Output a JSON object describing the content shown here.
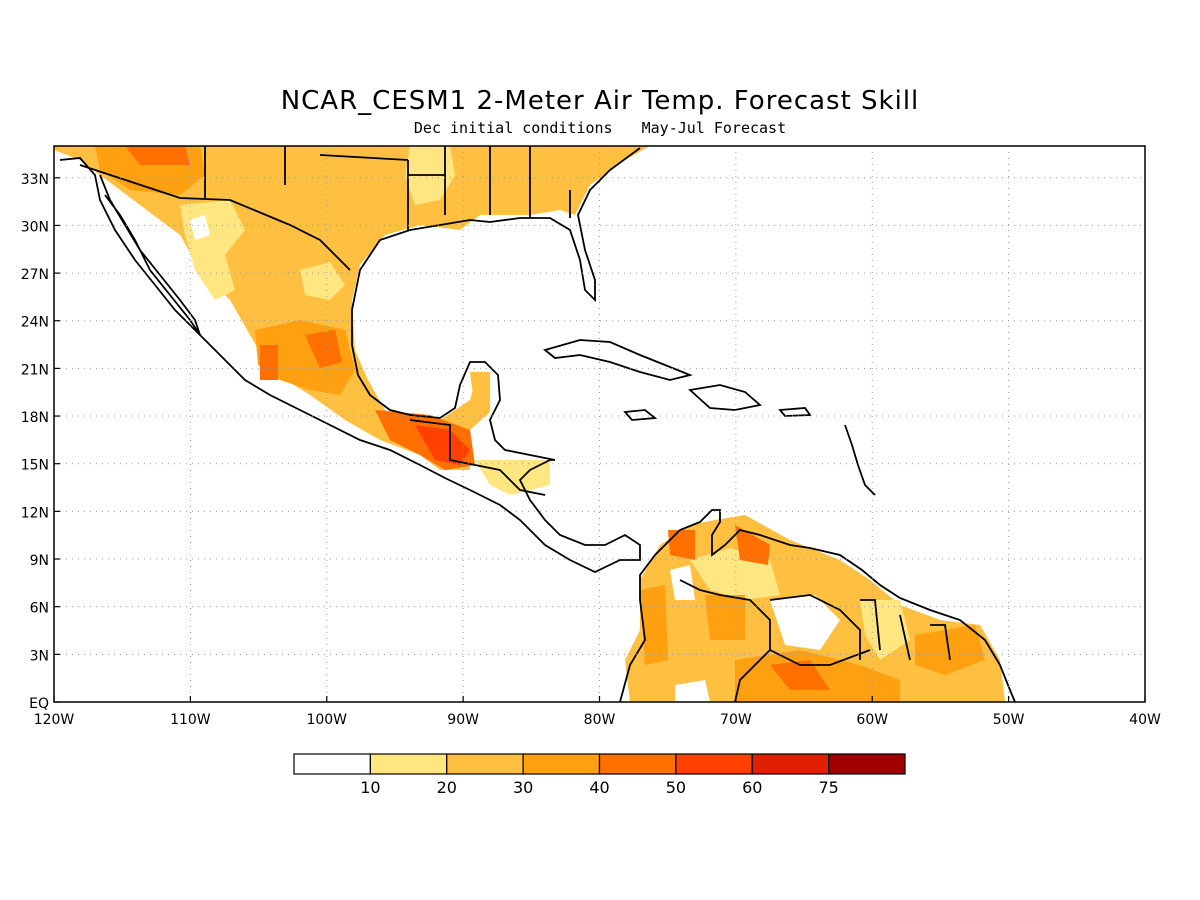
{
  "title": "NCAR_CESM1 2-Meter Air Temp. Forecast Skill",
  "subtitle_left": "Dec initial conditions",
  "subtitle_right": "May-Jul Forecast",
  "map": {
    "lon_range": [
      -120,
      -40
    ],
    "lat_range": [
      0,
      35
    ],
    "lon_labels": [
      "120W",
      "110W",
      "100W",
      "90W",
      "80W",
      "70W",
      "60W",
      "50W",
      "40W"
    ],
    "lat_labels": [
      "EQ",
      "3N",
      "6N",
      "9N",
      "12N",
      "15N",
      "18N",
      "21N",
      "24N",
      "27N",
      "30N",
      "33N"
    ],
    "grid": true
  },
  "colorbar": {
    "labels": [
      "10",
      "20",
      "30",
      "40",
      "50",
      "60",
      "75"
    ],
    "colors": [
      "#ffffff",
      "#ffe680",
      "#ffbf40",
      "#ffa010",
      "#ff7000",
      "#ff4000",
      "#e01e00",
      "#a00000"
    ]
  }
}
